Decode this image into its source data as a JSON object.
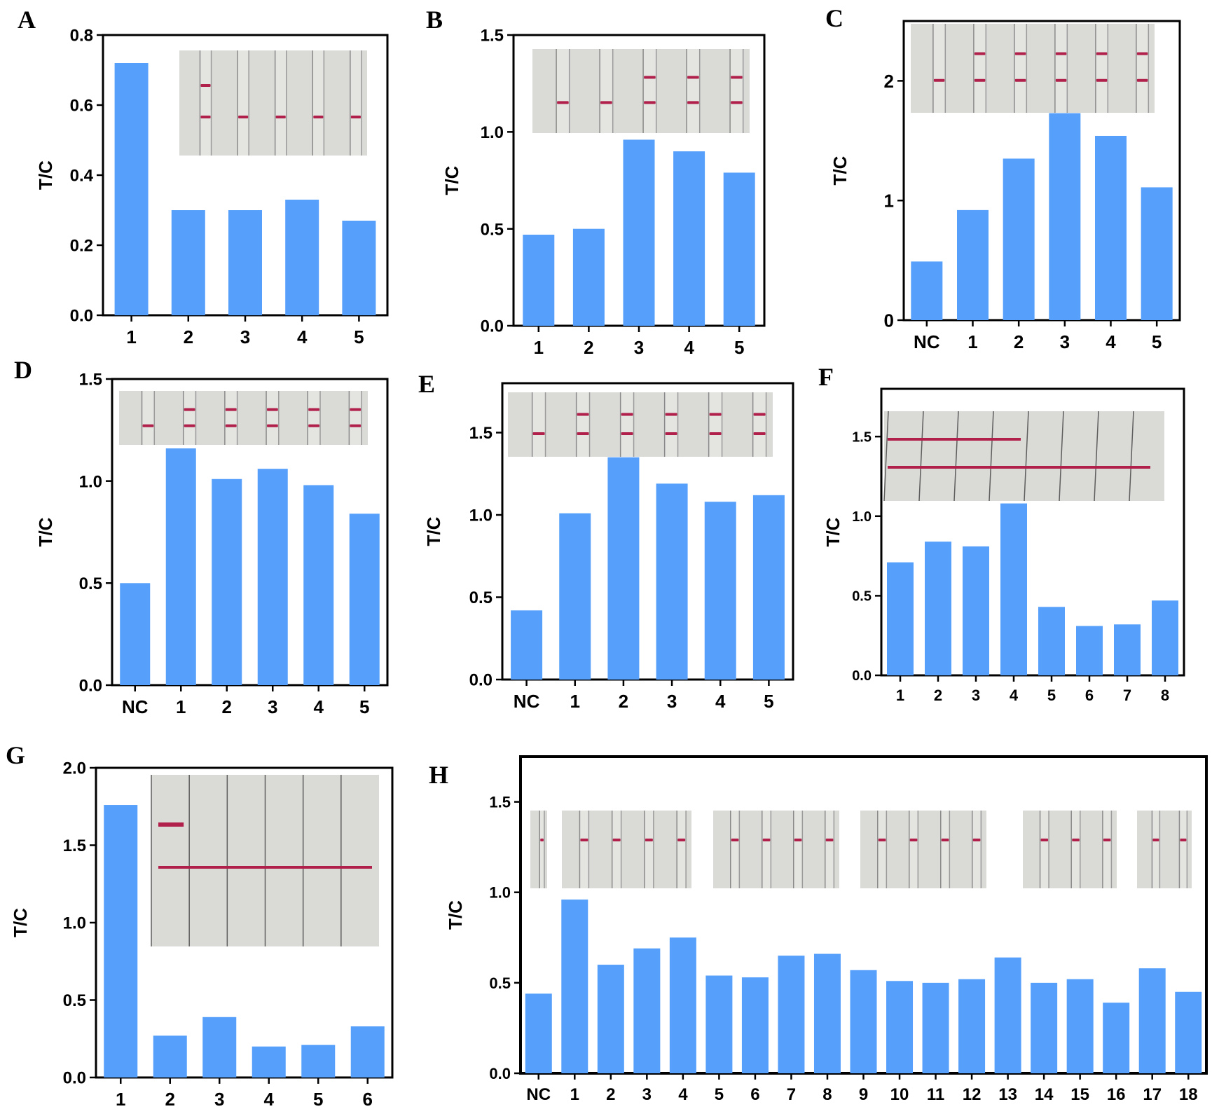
{
  "figure": {
    "colors": {
      "bar": "#56a0fb",
      "axis": "#000000",
      "photo_bg": "#d9d9d6",
      "strip_edge": "#7d7d7d",
      "band": "#b0204a"
    }
  },
  "chart_data": [
    {
      "panel": "A",
      "type": "bar",
      "ylabel": "T/C",
      "title": "",
      "categories": [
        "1",
        "2",
        "3",
        "4",
        "5"
      ],
      "values": [
        0.72,
        0.3,
        0.3,
        0.33,
        0.27
      ],
      "ylim": [
        0,
        0.8
      ],
      "yticks": [
        "0.0",
        "0.2",
        "0.4",
        "0.6",
        "0.8"
      ],
      "inset": "test-strip photograph"
    },
    {
      "panel": "B",
      "type": "bar",
      "ylabel": "T/C",
      "title": "",
      "categories": [
        "1",
        "2",
        "3",
        "4",
        "5"
      ],
      "values": [
        0.47,
        0.5,
        0.96,
        0.9,
        0.79
      ],
      "ylim": [
        0,
        1.5
      ],
      "yticks": [
        "0.0",
        "0.5",
        "1.0",
        "1.5"
      ],
      "inset": "test-strip photograph"
    },
    {
      "panel": "C",
      "type": "bar",
      "ylabel": "T/C",
      "title": "",
      "categories": [
        "NC",
        "1",
        "2",
        "3",
        "4",
        "5"
      ],
      "values": [
        0.49,
        0.92,
        1.35,
        1.73,
        1.54,
        1.11
      ],
      "ylim": [
        0,
        2.5
      ],
      "yticks": [
        "0",
        "1",
        "2"
      ],
      "inset": "test-strip photograph"
    },
    {
      "panel": "D",
      "type": "bar",
      "ylabel": "T/C",
      "title": "",
      "categories": [
        "NC",
        "1",
        "2",
        "3",
        "4",
        "5"
      ],
      "values": [
        0.5,
        1.16,
        1.01,
        1.06,
        0.98,
        0.84
      ],
      "ylim": [
        0,
        1.5
      ],
      "yticks": [
        "0.0",
        "0.5",
        "1.0",
        "1.5"
      ],
      "inset": "test-strip photograph"
    },
    {
      "panel": "E",
      "type": "bar",
      "ylabel": "T/C",
      "title": "",
      "categories": [
        "NC",
        "1",
        "2",
        "3",
        "4",
        "5"
      ],
      "values": [
        0.42,
        1.01,
        1.35,
        1.19,
        1.08,
        1.12
      ],
      "ylim": [
        0,
        1.8
      ],
      "yticks": [
        "0.0",
        "0.5",
        "1.0",
        "1.5"
      ],
      "inset": "test-strip photograph"
    },
    {
      "panel": "F",
      "type": "bar",
      "ylabel": "T/C",
      "title": "",
      "categories": [
        "1",
        "2",
        "3",
        "4",
        "5",
        "6",
        "7",
        "8"
      ],
      "values": [
        0.71,
        0.84,
        0.81,
        1.08,
        0.43,
        0.31,
        0.32,
        0.47
      ],
      "ylim": [
        0,
        1.8
      ],
      "yticks": [
        "0.0",
        "0.5",
        "1.0",
        "1.5"
      ],
      "inset": "test-strip photograph"
    },
    {
      "panel": "G",
      "type": "bar",
      "ylabel": "T/C",
      "title": "",
      "categories": [
        "1",
        "2",
        "3",
        "4",
        "5",
        "6"
      ],
      "values": [
        1.76,
        0.27,
        0.39,
        0.2,
        0.21,
        0.33
      ],
      "ylim": [
        0,
        2.0
      ],
      "yticks": [
        "0.0",
        "0.5",
        "1.0",
        "1.5",
        "2.0"
      ],
      "inset": "test-strip photograph"
    },
    {
      "panel": "H",
      "type": "bar",
      "ylabel": "T/C",
      "title": "",
      "categories": [
        "NC",
        "1",
        "2",
        "3",
        "4",
        "5",
        "6",
        "7",
        "8",
        "9",
        "10",
        "11",
        "12",
        "13",
        "14",
        "15",
        "16",
        "17",
        "18"
      ],
      "values": [
        0.44,
        0.96,
        0.6,
        0.69,
        0.75,
        0.54,
        0.53,
        0.65,
        0.66,
        0.57,
        0.51,
        0.5,
        0.52,
        0.64,
        0.5,
        0.52,
        0.39,
        0.58,
        0.45
      ],
      "ylim": [
        0,
        1.75
      ],
      "yticks": [
        "0.0",
        "0.5",
        "1.0",
        "1.5"
      ],
      "inset": "test-strip photographs"
    }
  ]
}
